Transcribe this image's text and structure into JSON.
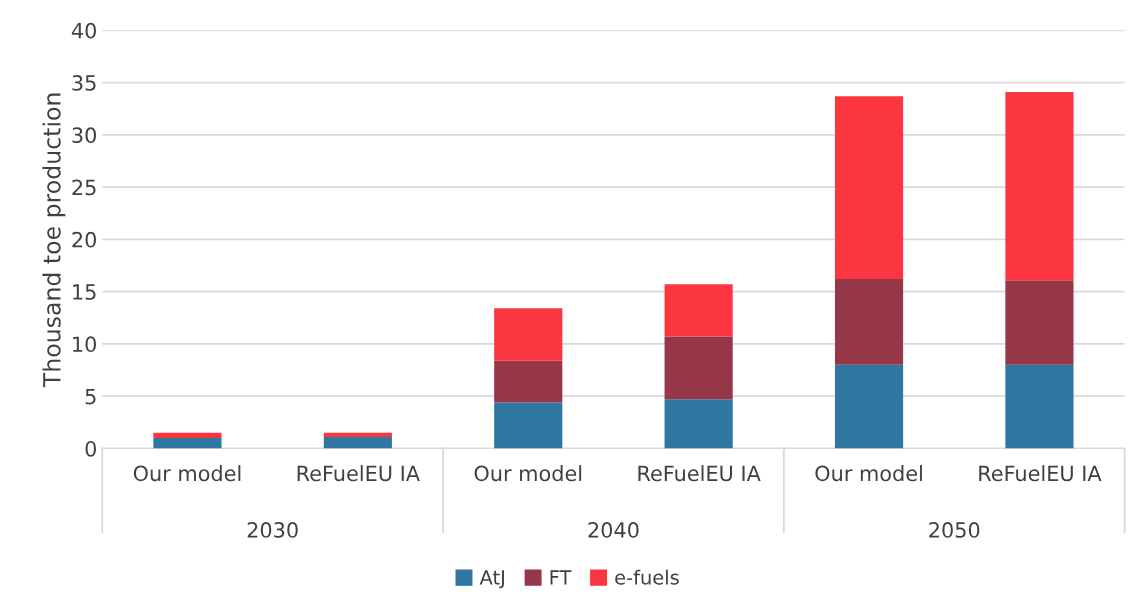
{
  "chart_data": {
    "type": "bar",
    "stacked": true,
    "ylabel": "Thousand toe production",
    "categories": [
      "Our model",
      "ReFuelEU IA",
      "Our model",
      "ReFuelEU IA",
      "Our model",
      "ReFuelEU IA"
    ],
    "series": [
      {
        "name": "AtJ",
        "color": "#2e77a0",
        "values": [
          1.0,
          1.1,
          4.4,
          4.7,
          8.0,
          8.0
        ]
      },
      {
        "name": "FT",
        "color": "#963749",
        "values": [
          0,
          0,
          4.0,
          6.0,
          8.2,
          8.1
        ]
      },
      {
        "name": "e-fuels",
        "color": "#fc3640",
        "values": [
          0.5,
          0.4,
          5.0,
          5.0,
          17.5,
          18.0
        ]
      }
    ],
    "annotations": [
      "2030",
      "2040",
      "2050"
    ],
    "ylim": [
      0,
      40
    ],
    "yticks": [
      0,
      5,
      10,
      15,
      20,
      25,
      30,
      35,
      40
    ],
    "grid": "y",
    "legend": "bottom"
  }
}
